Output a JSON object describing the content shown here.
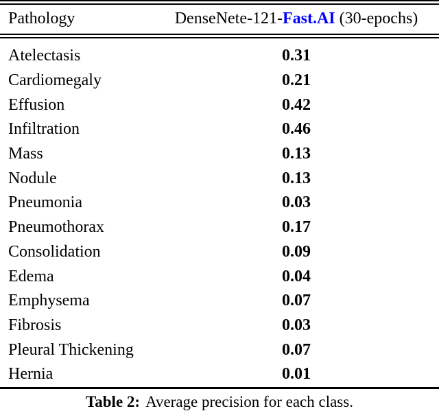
{
  "colors": {
    "background": "#ffffff",
    "text": "#000000",
    "rule": "#000000",
    "brand_blue": "#0000ff"
  },
  "table": {
    "header": {
      "col1": "Pathology",
      "col2_prefix": "DenseNete-121-",
      "col2_brand": "Fast.AI",
      "col2_suffix": " (30-epochs)"
    },
    "rows": [
      {
        "pathology": "Atelectasis",
        "value": "0.31"
      },
      {
        "pathology": "Cardiomegaly",
        "value": "0.21"
      },
      {
        "pathology": "Effusion",
        "value": "0.42"
      },
      {
        "pathology": "Infiltration",
        "value": "0.46"
      },
      {
        "pathology": "Mass",
        "value": "0.13"
      },
      {
        "pathology": "Nodule",
        "value": "0.13"
      },
      {
        "pathology": "Pneumonia",
        "value": "0.03"
      },
      {
        "pathology": "Pneumothorax",
        "value": "0.17"
      },
      {
        "pathology": "Consolidation",
        "value": "0.09"
      },
      {
        "pathology": "Edema",
        "value": "0.04"
      },
      {
        "pathology": "Emphysema",
        "value": "0.07"
      },
      {
        "pathology": "Fibrosis",
        "value": "0.03"
      },
      {
        "pathology": "Pleural Thickening",
        "value": "0.07"
      },
      {
        "pathology": "Hernia",
        "value": "0.01"
      }
    ]
  },
  "caption": {
    "label": "Table 2:",
    "text": "Average precision for each class."
  }
}
